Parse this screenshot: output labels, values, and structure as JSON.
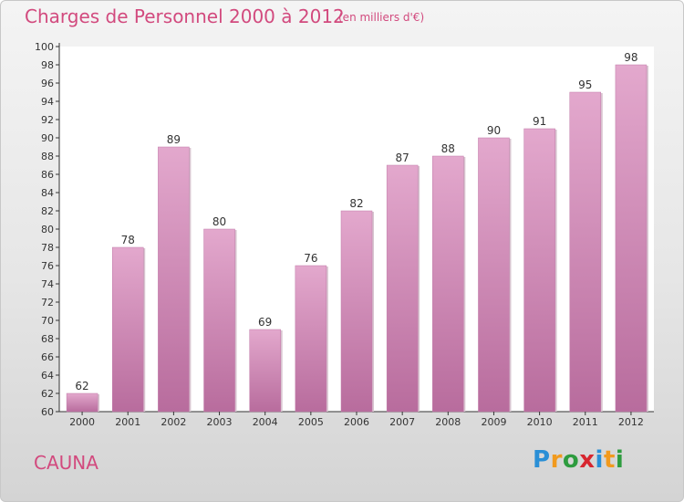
{
  "header": {
    "title": "Charges de Personnel 2000 à 2012",
    "subtitle": "(en milliers d'€)"
  },
  "footer": {
    "commune": "CAUNA",
    "logo": {
      "letters": [
        "P",
        "r",
        "o",
        "x",
        "i",
        "t",
        "i"
      ],
      "colors": [
        "#2a8fd6",
        "#f19a1e",
        "#2e9c3f",
        "#d7262f",
        "#2a8fd6",
        "#f19a1e",
        "#2e9c3f"
      ]
    }
  },
  "chart_data": {
    "type": "bar",
    "title": "Charges de Personnel 2000 à 2012",
    "subtitle": "(en milliers d'€)",
    "categories": [
      "2000",
      "2001",
      "2002",
      "2003",
      "2004",
      "2005",
      "2006",
      "2007",
      "2008",
      "2009",
      "2010",
      "2011",
      "2012"
    ],
    "values": [
      62,
      78,
      89,
      80,
      69,
      76,
      82,
      87,
      88,
      90,
      91,
      95,
      98
    ],
    "ylim": [
      60,
      100
    ],
    "ytick_step": 2,
    "grid": false,
    "bar_color": "#d58cba",
    "bar_color_light": "#e3a8cd",
    "bar_color_dark": "#b86c9d"
  }
}
